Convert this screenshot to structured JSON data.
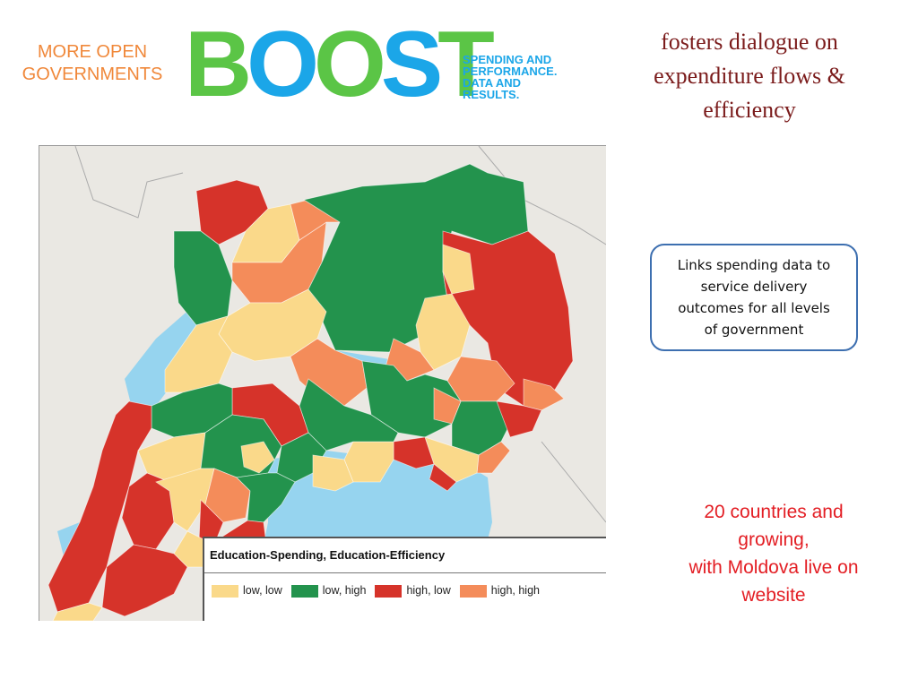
{
  "tagline": {
    "line1": "MORE OPEN",
    "line2": "GOVERNMENTS"
  },
  "logo": {
    "letters": [
      "B",
      "O",
      "O",
      "S",
      "T"
    ],
    "letter_colors": [
      "#5bc546",
      "#1ba6e8",
      "#5bc546",
      "#1ba6e8",
      "#5bc546"
    ],
    "subtitle": [
      "SPENDING AND",
      "PERFORMANCE.",
      "DATA AND",
      "RESULTS."
    ]
  },
  "headline": "fosters dialogue on expenditure flows & efficiency",
  "map": {
    "legend_title": "Education-Spending, Education-Efficiency",
    "legend_items": [
      {
        "label": "low, low",
        "color": "#fad98a"
      },
      {
        "label": "low, high",
        "color": "#23934d"
      },
      {
        "label": "high, low",
        "color": "#d6332a"
      },
      {
        "label": "high, high",
        "color": "#f48c5a"
      }
    ],
    "water_color": "#96d4ef",
    "land_outside_color": "#eae8e3"
  },
  "callout": "Links spending data to service delivery outcomes for all levels of government",
  "growth": {
    "line1": "20 countries and",
    "line2": "growing,",
    "line3": "with Moldova live on",
    "line4": "website"
  }
}
